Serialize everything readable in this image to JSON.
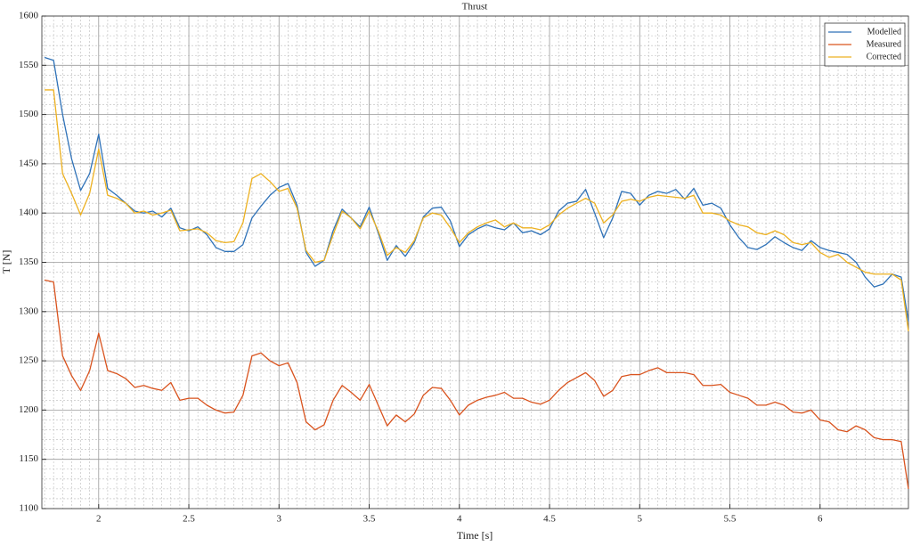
{
  "chart_data": {
    "type": "line",
    "title": "Thrust",
    "xlabel": "Time [s]",
    "ylabel": "T [N]",
    "x": [
      1.7,
      1.75,
      1.8,
      1.85,
      1.9,
      1.95,
      2.0,
      2.05,
      2.1,
      2.15,
      2.2,
      2.25,
      2.3,
      2.35,
      2.4,
      2.45,
      2.5,
      2.55,
      2.6,
      2.65,
      2.7,
      2.75,
      2.8,
      2.85,
      2.9,
      2.95,
      3.0,
      3.05,
      3.1,
      3.15,
      3.2,
      3.25,
      3.3,
      3.35,
      3.4,
      3.45,
      3.5,
      3.55,
      3.6,
      3.65,
      3.7,
      3.75,
      3.8,
      3.85,
      3.9,
      3.95,
      4.0,
      4.05,
      4.1,
      4.15,
      4.2,
      4.25,
      4.3,
      4.35,
      4.4,
      4.45,
      4.5,
      4.55,
      4.6,
      4.65,
      4.7,
      4.75,
      4.8,
      4.85,
      4.9,
      4.95,
      5.0,
      5.05,
      5.1,
      5.15,
      5.2,
      5.25,
      5.3,
      5.35,
      5.4,
      5.45,
      5.5,
      5.55,
      5.6,
      5.65,
      5.7,
      5.75,
      5.8,
      5.85,
      5.9,
      5.95,
      6.0,
      6.05,
      6.1,
      6.15,
      6.2,
      6.25,
      6.3,
      6.35,
      6.4,
      6.45,
      6.49
    ],
    "series": [
      {
        "name": "Modelled",
        "color": "#2f72b8",
        "values": [
          1558,
          1555,
          1500,
          1455,
          1423,
          1440,
          1480,
          1425,
          1418,
          1410,
          1402,
          1400,
          1402,
          1396,
          1405,
          1385,
          1382,
          1386,
          1378,
          1365,
          1361,
          1361,
          1368,
          1395,
          1407,
          1418,
          1426,
          1430,
          1408,
          1360,
          1346,
          1352,
          1382,
          1404,
          1395,
          1386,
          1406,
          1380,
          1352,
          1367,
          1356,
          1370,
          1396,
          1405,
          1406,
          1392,
          1366,
          1378,
          1384,
          1388,
          1385,
          1383,
          1390,
          1380,
          1382,
          1378,
          1384,
          1402,
          1410,
          1412,
          1424,
          1400,
          1375,
          1395,
          1422,
          1420,
          1408,
          1418,
          1422,
          1420,
          1424,
          1414,
          1425,
          1408,
          1410,
          1405,
          1388,
          1375,
          1365,
          1363,
          1368,
          1376,
          1370,
          1365,
          1362,
          1372,
          1365,
          1362,
          1360,
          1358,
          1350,
          1335,
          1325,
          1328,
          1338,
          1335,
          1290
        ]
      },
      {
        "name": "Measured",
        "color": "#d9531e",
        "values": [
          1332,
          1330,
          1255,
          1235,
          1220,
          1240,
          1278,
          1240,
          1237,
          1232,
          1223,
          1225,
          1222,
          1220,
          1228,
          1210,
          1212,
          1212,
          1205,
          1200,
          1197,
          1198,
          1215,
          1255,
          1258,
          1250,
          1245,
          1248,
          1228,
          1188,
          1180,
          1185,
          1210,
          1225,
          1218,
          1210,
          1226,
          1205,
          1184,
          1195,
          1188,
          1196,
          1215,
          1223,
          1222,
          1210,
          1195,
          1205,
          1210,
          1213,
          1215,
          1218,
          1212,
          1212,
          1208,
          1206,
          1210,
          1220,
          1228,
          1233,
          1238,
          1230,
          1214,
          1220,
          1234,
          1236,
          1236,
          1240,
          1243,
          1238,
          1238,
          1238,
          1236,
          1225,
          1225,
          1226,
          1218,
          1215,
          1212,
          1205,
          1205,
          1208,
          1205,
          1198,
          1197,
          1200,
          1190,
          1188,
          1180,
          1178,
          1184,
          1180,
          1172,
          1170,
          1170,
          1168,
          1120
        ]
      },
      {
        "name": "Corrected",
        "color": "#edb120",
        "values": [
          1525,
          1525,
          1440,
          1420,
          1398,
          1420,
          1465,
          1418,
          1415,
          1410,
          1400,
          1402,
          1398,
          1400,
          1403,
          1382,
          1383,
          1384,
          1380,
          1372,
          1370,
          1371,
          1390,
          1435,
          1440,
          1432,
          1422,
          1425,
          1405,
          1362,
          1350,
          1352,
          1378,
          1402,
          1395,
          1384,
          1402,
          1382,
          1357,
          1365,
          1360,
          1372,
          1395,
          1400,
          1398,
          1385,
          1370,
          1380,
          1386,
          1390,
          1393,
          1386,
          1390,
          1385,
          1385,
          1383,
          1388,
          1398,
          1405,
          1410,
          1415,
          1410,
          1390,
          1398,
          1412,
          1414,
          1412,
          1416,
          1418,
          1417,
          1416,
          1415,
          1418,
          1400,
          1400,
          1398,
          1392,
          1388,
          1386,
          1380,
          1378,
          1382,
          1378,
          1370,
          1368,
          1370,
          1360,
          1355,
          1358,
          1350,
          1345,
          1340,
          1338,
          1338,
          1338,
          1332,
          1280
        ]
      }
    ],
    "xlim": [
      1.685,
      6.49
    ],
    "ylim": [
      1100,
      1600
    ],
    "xticks": [
      2,
      2.5,
      3,
      3.5,
      4,
      4.5,
      5,
      5.5,
      6
    ],
    "yticks": [
      1100,
      1150,
      1200,
      1250,
      1300,
      1350,
      1400,
      1450,
      1500,
      1550,
      1600
    ],
    "grid": true,
    "minor_grid": true,
    "legend": "upper right"
  }
}
